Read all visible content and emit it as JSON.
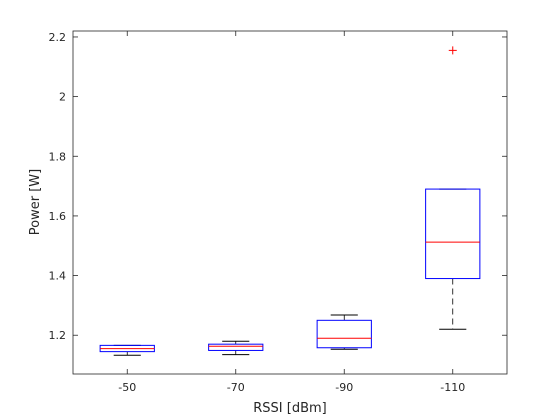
{
  "chart_data": {
    "type": "boxplot",
    "title": "",
    "xlabel": "RSSI [dBm]",
    "ylabel": "Power [W]",
    "ylim": [
      1.07,
      2.22
    ],
    "y_ticks": [
      1.2,
      1.4,
      1.6,
      1.8,
      2,
      2.2
    ],
    "y_tick_labels": [
      "1.2",
      "1.4",
      "1.6",
      "1.8",
      "2",
      "2.2"
    ],
    "categories": [
      "-50",
      "-70",
      "-90",
      "-110"
    ],
    "grid": false,
    "box_color": "#0000ff",
    "median_color": "#ff0000",
    "whisker_color": "#000000",
    "outlier_color": "#ff0000",
    "boxes": [
      {
        "category": "-50",
        "whisker_low": 1.133,
        "q1": 1.145,
        "median": 1.155,
        "q3": 1.166,
        "whisker_high": 1.166,
        "outliers": []
      },
      {
        "category": "-70",
        "whisker_low": 1.135,
        "q1": 1.149,
        "median": 1.163,
        "q3": 1.17,
        "whisker_high": 1.18,
        "outliers": []
      },
      {
        "category": "-90",
        "whisker_low": 1.153,
        "q1": 1.158,
        "median": 1.19,
        "q3": 1.25,
        "whisker_high": 1.268,
        "outliers": []
      },
      {
        "category": "-110",
        "whisker_low": 1.22,
        "q1": 1.39,
        "median": 1.512,
        "q3": 1.69,
        "whisker_high": 1.69,
        "outliers": [
          2.155
        ]
      }
    ]
  }
}
